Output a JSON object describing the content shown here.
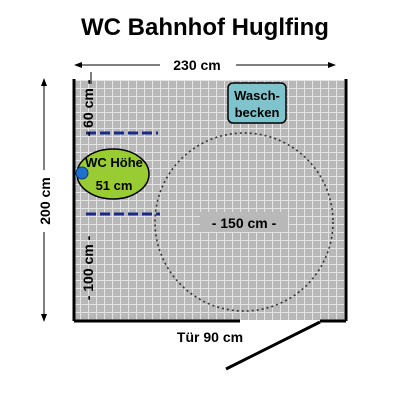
{
  "title": "WC Bahnhof Huglfing",
  "dimensions": {
    "width": "230 cm",
    "height": "200 cm",
    "wall_top_gap": "- 60 cm -",
    "wall_bottom_gap": "- 100 cm -",
    "turning_circle": "- 150 cm -",
    "door": "Tür 90 cm"
  },
  "fixtures": {
    "sink_line1": "Wasch-",
    "sink_line2": "becken",
    "toilet_line1": "WC Höhe",
    "toilet_line2": "51 cm"
  },
  "colors": {
    "floor": "#b8b8b8",
    "grid": "#e4e4e4",
    "wall": "#000000",
    "toilet": "#99cc33",
    "toilet_seat": "#1f6fd0",
    "sink": "#7fc4cc",
    "grab_bar": "#1a2a8a"
  }
}
